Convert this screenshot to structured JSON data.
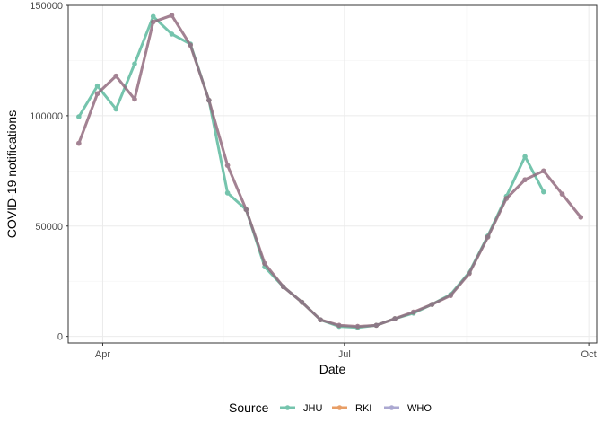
{
  "chart_data": {
    "type": "line",
    "xlabel": "Date",
    "ylabel": "COVID-19 notifications",
    "ylim": [
      -3000,
      150000
    ],
    "xlim": [
      "2020-03-19",
      "2020-10-04"
    ],
    "y_ticks": [
      0,
      50000,
      100000,
      150000
    ],
    "y_tick_labels": [
      "0",
      "50000",
      "100000",
      "150000"
    ],
    "x_ticks": [
      "2020-04-01",
      "2020-07-01",
      "2020-10-01"
    ],
    "x_tick_labels": [
      "Apr",
      "Jul",
      "Oct"
    ],
    "grid": true,
    "legend": {
      "title": "Source",
      "placement": "bottom"
    },
    "series": [
      {
        "name": "JHU",
        "color": "#1b9e77",
        "dates": [
          "2020-03-23",
          "2020-03-30",
          "2020-04-06",
          "2020-04-13",
          "2020-04-20",
          "2020-04-27",
          "2020-05-04",
          "2020-05-11",
          "2020-05-18",
          "2020-05-25",
          "2020-06-01",
          "2020-06-08",
          "2020-06-15",
          "2020-06-22",
          "2020-06-29",
          "2020-07-06",
          "2020-07-13",
          "2020-07-20",
          "2020-07-27",
          "2020-08-03",
          "2020-08-10",
          "2020-08-17",
          "2020-08-24",
          "2020-08-31",
          "2020-09-07",
          "2020-09-14",
          "2020-09-21"
        ],
        "values": [
          99500,
          113500,
          103000,
          123500,
          145000,
          137000,
          132500,
          107000,
          65000,
          57500,
          31500,
          22500,
          15500,
          7500,
          4500,
          4000,
          5000,
          8000,
          10500,
          14500,
          19000,
          29000,
          45500,
          63500,
          81500,
          65500,
          null
        ]
      },
      {
        "name": "RKI",
        "color": "#d95f02",
        "dates": [
          "2020-03-23",
          "2020-03-30",
          "2020-04-06",
          "2020-04-13",
          "2020-04-20",
          "2020-04-27",
          "2020-05-04",
          "2020-05-11",
          "2020-05-18",
          "2020-05-25",
          "2020-06-01",
          "2020-06-08",
          "2020-06-15",
          "2020-06-22",
          "2020-06-29",
          "2020-07-06",
          "2020-07-13",
          "2020-07-20",
          "2020-07-27",
          "2020-08-03",
          "2020-08-10",
          "2020-08-17",
          "2020-08-24",
          "2020-08-31",
          "2020-09-07",
          "2020-09-14",
          "2020-09-21",
          "2020-09-28",
          "2020-10-05"
        ],
        "values": [
          87500,
          110000,
          118000,
          107500,
          142500,
          145500,
          132000,
          107000,
          77500,
          57500,
          33000,
          22500,
          15500,
          7500,
          5000,
          4500,
          5000,
          8000,
          11000,
          14500,
          18500,
          28500,
          45000,
          62500,
          71000,
          75000,
          64500,
          54000,
          null
        ]
      },
      {
        "name": "WHO",
        "color": "#7570b3",
        "dates": [
          "2020-03-23",
          "2020-03-30",
          "2020-04-06",
          "2020-04-13",
          "2020-04-20",
          "2020-04-27",
          "2020-05-04",
          "2020-05-11",
          "2020-05-18",
          "2020-05-25",
          "2020-06-01",
          "2020-06-08",
          "2020-06-15",
          "2020-06-22",
          "2020-06-29",
          "2020-07-06",
          "2020-07-13",
          "2020-07-20",
          "2020-07-27",
          "2020-08-03",
          "2020-08-10",
          "2020-08-17",
          "2020-08-24",
          "2020-08-31",
          "2020-09-07",
          "2020-09-14",
          "2020-09-21",
          "2020-09-28"
        ],
        "values": [
          87500,
          110000,
          118000,
          107500,
          142500,
          145500,
          132000,
          107000,
          77500,
          57500,
          33000,
          22500,
          15500,
          7500,
          5000,
          4500,
          5000,
          8000,
          11000,
          14500,
          18500,
          28500,
          45000,
          62500,
          71000,
          75000,
          64500,
          54000
        ]
      }
    ]
  }
}
